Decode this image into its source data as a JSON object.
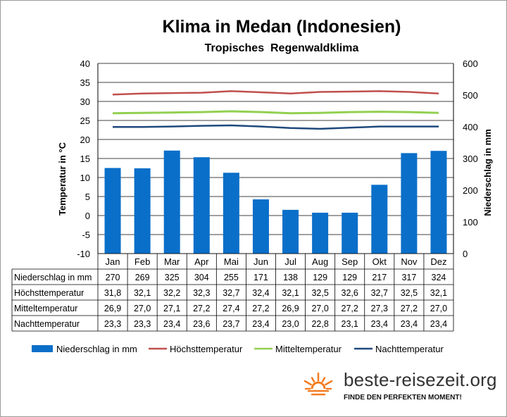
{
  "chart_data": {
    "type": "bar",
    "title": "Klima in Medan (Indonesien)",
    "subtitle": "Tropisches  Regenwaldklima",
    "categories": [
      "Jan",
      "Feb",
      "Mar",
      "Apr",
      "Mai",
      "Jun",
      "Jul",
      "Aug",
      "Sep",
      "Okt",
      "Nov",
      "Dez"
    ],
    "ylabel_left": "Temperatur in °C",
    "ylabel_right": "Niederschlag in mm",
    "ylim_left": [
      -10,
      40
    ],
    "ylim_right": [
      0,
      600
    ],
    "yticks_left": [
      "40",
      "35",
      "30",
      "25",
      "20",
      "15",
      "10",
      "5",
      "0",
      "-5",
      "-10"
    ],
    "yticks_right": [
      "600",
      "500",
      "400",
      "300",
      "200",
      "100",
      "0"
    ],
    "grid": true,
    "legend_position": "bottom",
    "series": [
      {
        "name": "Niederschlag in mm",
        "type": "bar",
        "axis": "right",
        "color": "#0a6fc9",
        "values": [
          270,
          269,
          325,
          304,
          255,
          171,
          138,
          129,
          129,
          217,
          317,
          324
        ],
        "labels": [
          "270",
          "269",
          "325",
          "304",
          "255",
          "171",
          "138",
          "129",
          "129",
          "217",
          "317",
          "324"
        ]
      },
      {
        "name": "Höchsttemperatur",
        "type": "line",
        "axis": "left",
        "color": "#c0504d",
        "values": [
          31.8,
          32.1,
          32.2,
          32.3,
          32.7,
          32.4,
          32.1,
          32.5,
          32.6,
          32.7,
          32.5,
          32.1
        ],
        "labels": [
          "31,8",
          "32,1",
          "32,2",
          "32,3",
          "32,7",
          "32,4",
          "32,1",
          "32,5",
          "32,6",
          "32,7",
          "32,5",
          "32,1"
        ]
      },
      {
        "name": "Mitteltemperatur",
        "type": "line",
        "axis": "left",
        "color": "#92d050",
        "values": [
          26.9,
          27.0,
          27.1,
          27.2,
          27.4,
          27.2,
          26.9,
          27.0,
          27.2,
          27.3,
          27.2,
          27.0
        ],
        "labels": [
          "26,9",
          "27,0",
          "27,1",
          "27,2",
          "27,4",
          "27,2",
          "26,9",
          "27,0",
          "27,2",
          "27,3",
          "27,2",
          "27,0"
        ]
      },
      {
        "name": "Nachttemperatur",
        "type": "line",
        "axis": "left",
        "color": "#1f497d",
        "values": [
          23.3,
          23.3,
          23.4,
          23.6,
          23.7,
          23.4,
          23.0,
          22.8,
          23.1,
          23.4,
          23.4,
          23.4
        ],
        "labels": [
          "23,3",
          "23,3",
          "23,4",
          "23,6",
          "23,7",
          "23,4",
          "23,0",
          "22,8",
          "23,1",
          "23,4",
          "23,4",
          "23,4"
        ]
      }
    ]
  },
  "branding": {
    "name": "beste-reisezeit.org",
    "tagline": "FINDE DEN PERFEKTEN MOMENT!",
    "sun_color": "#f47b20"
  }
}
